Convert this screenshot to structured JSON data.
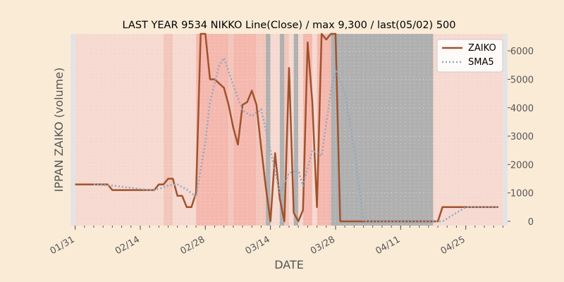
{
  "chart_data": {
    "type": "line",
    "title": "LAST YEAR 9534 NIKKO Line(Close) / max 9,300 / last(05/02) 500",
    "xlabel": "DATE",
    "ylabel": "IPPAN ZAIKO (volume)",
    "x_tick_labels": [
      "01/31",
      "02/14",
      "02/28",
      "03/14",
      "03/28",
      "04/11",
      "04/25"
    ],
    "x_ticks": [
      "2022-01-31",
      "2022-02-14",
      "2022-02-28",
      "2022-03-14",
      "2022-03-28",
      "2022-04-11",
      "2022-04-25"
    ],
    "y_ticks": [
      0,
      1000,
      2000,
      3000,
      4000,
      5000,
      6000
    ],
    "xlim": [
      "2022-01-30",
      "2022-05-04"
    ],
    "ylim": [
      -150,
      6600
    ],
    "grid": true,
    "legend_position": "top-right",
    "series": [
      {
        "name": "ZAIKO",
        "color": "#a0522d",
        "style": "solid",
        "points": [
          [
            "2022-01-31",
            1300
          ],
          [
            "2022-02-01",
            1300
          ],
          [
            "2022-02-02",
            1300
          ],
          [
            "2022-02-03",
            1300
          ],
          [
            "2022-02-04",
            1300
          ],
          [
            "2022-02-05",
            1300
          ],
          [
            "2022-02-06",
            1300
          ],
          [
            "2022-02-07",
            1300
          ],
          [
            "2022-02-08",
            1100
          ],
          [
            "2022-02-09",
            1100
          ],
          [
            "2022-02-10",
            1100
          ],
          [
            "2022-02-11",
            1100
          ],
          [
            "2022-02-12",
            1100
          ],
          [
            "2022-02-13",
            1100
          ],
          [
            "2022-02-14",
            1100
          ],
          [
            "2022-02-15",
            1100
          ],
          [
            "2022-02-16",
            1100
          ],
          [
            "2022-02-17",
            1100
          ],
          [
            "2022-02-18",
            1300
          ],
          [
            "2022-02-19",
            1300
          ],
          [
            "2022-02-20",
            1500
          ],
          [
            "2022-02-21",
            1500
          ],
          [
            "2022-02-22",
            900
          ],
          [
            "2022-02-23",
            900
          ],
          [
            "2022-02-24",
            500
          ],
          [
            "2022-02-25",
            500
          ],
          [
            "2022-02-26",
            1000
          ],
          [
            "2022-02-27",
            6600
          ],
          [
            "2022-02-28",
            6600
          ],
          [
            "2022-03-01",
            5000
          ],
          [
            "2022-03-02",
            5000
          ],
          [
            "2022-03-03",
            4850
          ],
          [
            "2022-03-04",
            4700
          ],
          [
            "2022-03-05",
            4100
          ],
          [
            "2022-03-06",
            3300
          ],
          [
            "2022-03-07",
            2700
          ],
          [
            "2022-03-08",
            4100
          ],
          [
            "2022-03-09",
            4200
          ],
          [
            "2022-03-10",
            4600
          ],
          [
            "2022-03-11",
            4100
          ],
          [
            "2022-03-12",
            2600
          ],
          [
            "2022-03-13",
            1200
          ],
          [
            "2022-03-14",
            0
          ],
          [
            "2022-03-15",
            2400
          ],
          [
            "2022-03-16",
            800
          ],
          [
            "2022-03-17",
            0
          ],
          [
            "2022-03-18",
            5400
          ],
          [
            "2022-03-19",
            300
          ],
          [
            "2022-03-20",
            0
          ],
          [
            "2022-03-21",
            400
          ],
          [
            "2022-03-22",
            6300
          ],
          [
            "2022-03-23",
            4200
          ],
          [
            "2022-03-24",
            500
          ],
          [
            "2022-03-25",
            6600
          ],
          [
            "2022-03-26",
            6400
          ],
          [
            "2022-03-27",
            6600
          ],
          [
            "2022-03-28",
            6600
          ],
          [
            "2022-03-29",
            0
          ],
          [
            "2022-03-30",
            0
          ],
          [
            "2022-03-31",
            0
          ],
          [
            "2022-04-01",
            0
          ],
          [
            "2022-04-02",
            0
          ],
          [
            "2022-04-03",
            0
          ],
          [
            "2022-04-04",
            0
          ],
          [
            "2022-04-05",
            0
          ],
          [
            "2022-04-06",
            0
          ],
          [
            "2022-04-07",
            0
          ],
          [
            "2022-04-08",
            0
          ],
          [
            "2022-04-09",
            0
          ],
          [
            "2022-04-10",
            0
          ],
          [
            "2022-04-11",
            0
          ],
          [
            "2022-04-12",
            0
          ],
          [
            "2022-04-13",
            0
          ],
          [
            "2022-04-14",
            0
          ],
          [
            "2022-04-15",
            0
          ],
          [
            "2022-04-16",
            0
          ],
          [
            "2022-04-17",
            0
          ],
          [
            "2022-04-18",
            0
          ],
          [
            "2022-04-19",
            0
          ],
          [
            "2022-04-20",
            500
          ],
          [
            "2022-04-21",
            500
          ],
          [
            "2022-04-22",
            500
          ],
          [
            "2022-04-23",
            500
          ],
          [
            "2022-04-24",
            500
          ],
          [
            "2022-04-25",
            500
          ],
          [
            "2022-04-26",
            500
          ],
          [
            "2022-04-27",
            500
          ],
          [
            "2022-04-28",
            500
          ],
          [
            "2022-04-29",
            500
          ],
          [
            "2022-04-30",
            500
          ],
          [
            "2022-05-01",
            500
          ],
          [
            "2022-05-02",
            500
          ]
        ]
      },
      {
        "name": "SMA5",
        "color": "#8fa8c0",
        "style": "dotted",
        "points": [
          [
            "2022-02-04",
            1300
          ],
          [
            "2022-02-08",
            1260
          ],
          [
            "2022-02-12",
            1180
          ],
          [
            "2022-02-16",
            1100
          ],
          [
            "2022-02-18",
            1140
          ],
          [
            "2022-02-20",
            1260
          ],
          [
            "2022-02-22",
            1300
          ],
          [
            "2022-02-24",
            1120
          ],
          [
            "2022-02-26",
            860
          ],
          [
            "2022-02-28",
            2800
          ],
          [
            "2022-03-01",
            4200
          ],
          [
            "2022-03-03",
            5500
          ],
          [
            "2022-03-04",
            5750
          ],
          [
            "2022-03-06",
            4800
          ],
          [
            "2022-03-08",
            3900
          ],
          [
            "2022-03-10",
            3700
          ],
          [
            "2022-03-12",
            3950
          ],
          [
            "2022-03-14",
            2500
          ],
          [
            "2022-03-16",
            1000
          ],
          [
            "2022-03-18",
            1700
          ],
          [
            "2022-03-20",
            1800
          ],
          [
            "2022-03-21",
            1250
          ],
          [
            "2022-03-23",
            2500
          ],
          [
            "2022-03-25",
            2300
          ],
          [
            "2022-03-27",
            4600
          ],
          [
            "2022-03-28",
            5350
          ],
          [
            "2022-03-30",
            4500
          ],
          [
            "2022-04-01",
            2600
          ],
          [
            "2022-04-03",
            0
          ],
          [
            "2022-04-20",
            0
          ],
          [
            "2022-04-22",
            200
          ],
          [
            "2022-04-25",
            500
          ],
          [
            "2022-05-02",
            500
          ]
        ]
      }
    ],
    "background_bands": [
      {
        "from": "2022-01-30",
        "to": "2022-01-31",
        "level": "gray-light"
      },
      {
        "from": "2022-01-31",
        "to": "2022-02-19",
        "level": "light"
      },
      {
        "from": "2022-02-19",
        "to": "2022-02-21",
        "level": "medium"
      },
      {
        "from": "2022-02-21",
        "to": "2022-02-26",
        "level": "light"
      },
      {
        "from": "2022-02-26",
        "to": "2022-03-05",
        "level": "strong"
      },
      {
        "from": "2022-03-05",
        "to": "2022-03-06",
        "level": "medium"
      },
      {
        "from": "2022-03-06",
        "to": "2022-03-11",
        "level": "strong"
      },
      {
        "from": "2022-03-11",
        "to": "2022-03-13",
        "level": "medium"
      },
      {
        "from": "2022-03-13",
        "to": "2022-03-14",
        "level": "gray"
      },
      {
        "from": "2022-03-14",
        "to": "2022-03-16",
        "level": "light"
      },
      {
        "from": "2022-03-16",
        "to": "2022-03-17",
        "level": "gray"
      },
      {
        "from": "2022-03-17",
        "to": "2022-03-18",
        "level": "medium"
      },
      {
        "from": "2022-03-18",
        "to": "2022-03-19",
        "level": "light"
      },
      {
        "from": "2022-03-19",
        "to": "2022-03-20",
        "level": "gray"
      },
      {
        "from": "2022-03-20",
        "to": "2022-03-21",
        "level": "light"
      },
      {
        "from": "2022-03-21",
        "to": "2022-03-23",
        "level": "strong"
      },
      {
        "from": "2022-03-23",
        "to": "2022-03-24",
        "level": "light"
      },
      {
        "from": "2022-03-24",
        "to": "2022-03-27",
        "level": "strong"
      },
      {
        "from": "2022-03-27",
        "to": "2022-03-28",
        "level": "gray"
      },
      {
        "from": "2022-03-28",
        "to": "2022-04-18",
        "level": "gray"
      },
      {
        "from": "2022-04-18",
        "to": "2022-05-03",
        "level": "light"
      },
      {
        "from": "2022-05-03",
        "to": "2022-05-04",
        "level": "gray-light"
      }
    ],
    "band_colors": {
      "light": "#f6d9d0",
      "medium": "#f3c6bb",
      "strong": "#f4b8ae",
      "gray": "#b0b0b0",
      "gray-light": "#e3e3e3"
    }
  }
}
